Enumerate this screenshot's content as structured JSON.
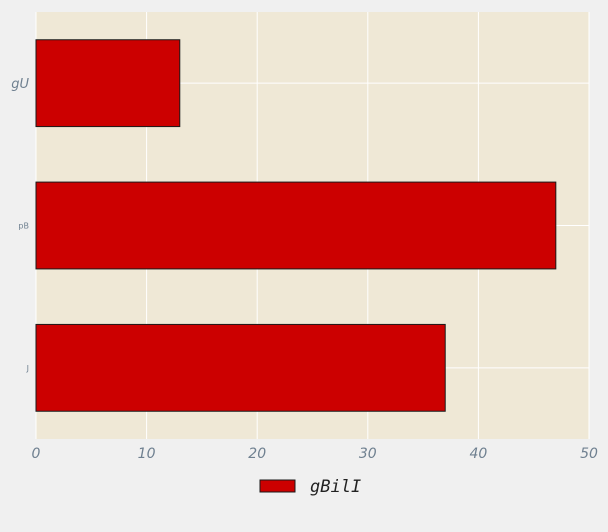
{
  "chart_data": {
    "type": "bar",
    "orientation": "horizontal",
    "categories": [
      "gU",
      "pB",
      "J"
    ],
    "series": [
      {
        "name": "gBilI",
        "values": [
          13,
          47,
          37
        ]
      }
    ],
    "xlim": [
      0,
      50
    ],
    "x_ticks": [
      0,
      10,
      20,
      30,
      40,
      50
    ],
    "title": "",
    "xlabel": "",
    "ylabel": "",
    "grid": true,
    "legend_position": "bottom-center",
    "colors": {
      "bar": "#cc0000",
      "bar_edge": "#1a1a1a",
      "plot_background": "#efe8d6",
      "figure_background": "#f0f0f0",
      "grid": "#ffffff",
      "tick_text": "#6f8090"
    }
  }
}
